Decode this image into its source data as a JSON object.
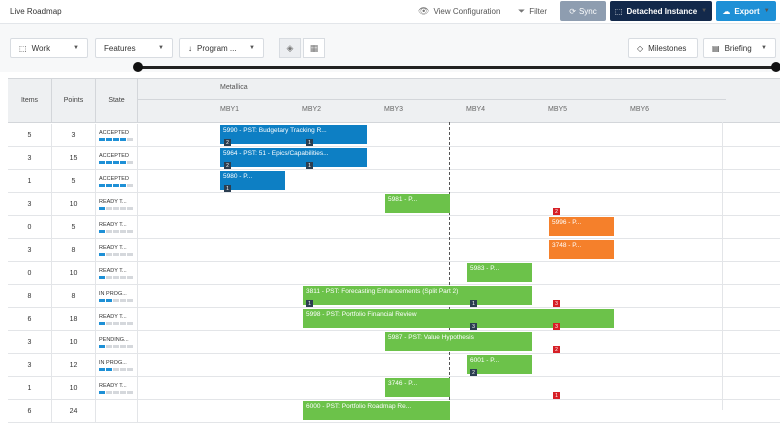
{
  "app": {
    "title": "Live Roadmap"
  },
  "topbar": {
    "view_config": "View Configuration",
    "filter": "Filter",
    "sync": "Sync",
    "detached": "Detached Instance",
    "export": "Export"
  },
  "toolbar": {
    "work": "Work",
    "features": "Features",
    "program": "Program ...",
    "milestones": "Milestones",
    "briefing": "Briefing"
  },
  "grid": {
    "headers": {
      "items": "Items",
      "points": "Points",
      "state": "State"
    },
    "program": "Metallica",
    "periods": [
      "MBY1",
      "MBY2",
      "MBY3",
      "MBY4",
      "MBY5",
      "MBY6"
    ]
  },
  "rows": [
    {
      "items": "5",
      "points": "3",
      "state": "ACCEPTED",
      "progress": 4
    },
    {
      "items": "3",
      "points": "15",
      "state": "ACCEPTED",
      "progress": 4
    },
    {
      "items": "1",
      "points": "5",
      "state": "ACCEPTED",
      "progress": 4
    },
    {
      "items": "3",
      "points": "10",
      "state": "READY T...",
      "progress": 1
    },
    {
      "items": "0",
      "points": "5",
      "state": "READY T...",
      "progress": 1
    },
    {
      "items": "3",
      "points": "8",
      "state": "READY T...",
      "progress": 1
    },
    {
      "items": "0",
      "points": "10",
      "state": "READY T...",
      "progress": 1
    },
    {
      "items": "8",
      "points": "8",
      "state": "IN PROG...",
      "progress": 2
    },
    {
      "items": "6",
      "points": "18",
      "state": "READY T...",
      "progress": 1
    },
    {
      "items": "3",
      "points": "10",
      "state": "PENDING...",
      "progress": 1
    },
    {
      "items": "3",
      "points": "12",
      "state": "IN PROG...",
      "progress": 2
    },
    {
      "items": "1",
      "points": "10",
      "state": "READY T...",
      "progress": 1
    },
    {
      "items": "6",
      "points": "24",
      "state": "",
      "progress": 0
    }
  ],
  "features": [
    {
      "label": "5990 - PST: Budgetary Tracking R...",
      "color": "blue"
    },
    {
      "label": "5964 - PST: 51 - Epics/Capabilities...",
      "color": "blue"
    },
    {
      "label": "5980 - P...",
      "color": "blue"
    },
    {
      "label": "5981 - P...",
      "color": "green"
    },
    {
      "label": "5996 - P...",
      "color": "orange"
    },
    {
      "label": "3748 - P...",
      "color": "orange"
    },
    {
      "label": "5983 - P...",
      "color": "green"
    },
    {
      "label": "3811 - PST: Forecasting Enhancements (Split Part 2)",
      "color": "green"
    },
    {
      "label": "5998 - PST: Portfolio Financial Review",
      "color": "green"
    },
    {
      "label": "5987 - PST: Value Hypothesis",
      "color": "green"
    },
    {
      "label": "6001 - P...",
      "color": "green"
    },
    {
      "label": "3746 - P...",
      "color": "green"
    },
    {
      "label": "6000 - PST: Portfolio Roadmap Re...",
      "color": "green"
    }
  ],
  "badges": [
    "2",
    "1",
    "2",
    "1",
    "1",
    "2",
    "1",
    "1",
    "3",
    "3",
    "3",
    "2",
    "2",
    "1"
  ],
  "colors": {
    "blue": "#0d7fc4",
    "green": "#6cc24a",
    "orange": "#f5802b",
    "navy": "#13294b",
    "export": "#1e90d6"
  }
}
